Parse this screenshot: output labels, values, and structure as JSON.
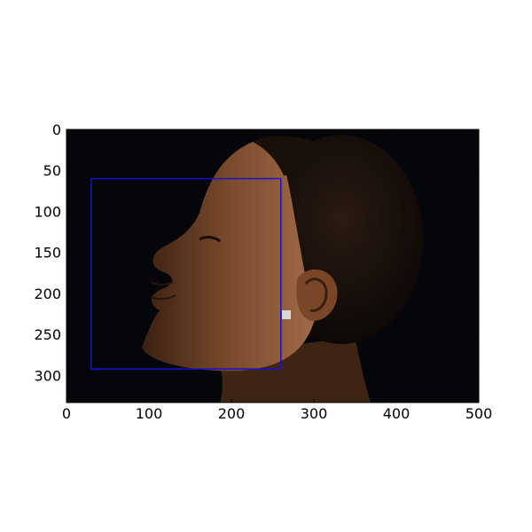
{
  "figure": {
    "x_ticks": [
      "0",
      "100",
      "200",
      "300",
      "400",
      "500"
    ],
    "y_ticks": [
      "0",
      "50",
      "100",
      "150",
      "200",
      "250",
      "300"
    ],
    "xlim": [
      0,
      500
    ],
    "ylim": [
      333,
      0
    ],
    "box_color": "#1a10c8",
    "bounding_box_data": {
      "x0": 30,
      "y0": 60,
      "x1": 260,
      "y1": 292
    },
    "image_description_icons": [
      "portrait-photo"
    ]
  }
}
